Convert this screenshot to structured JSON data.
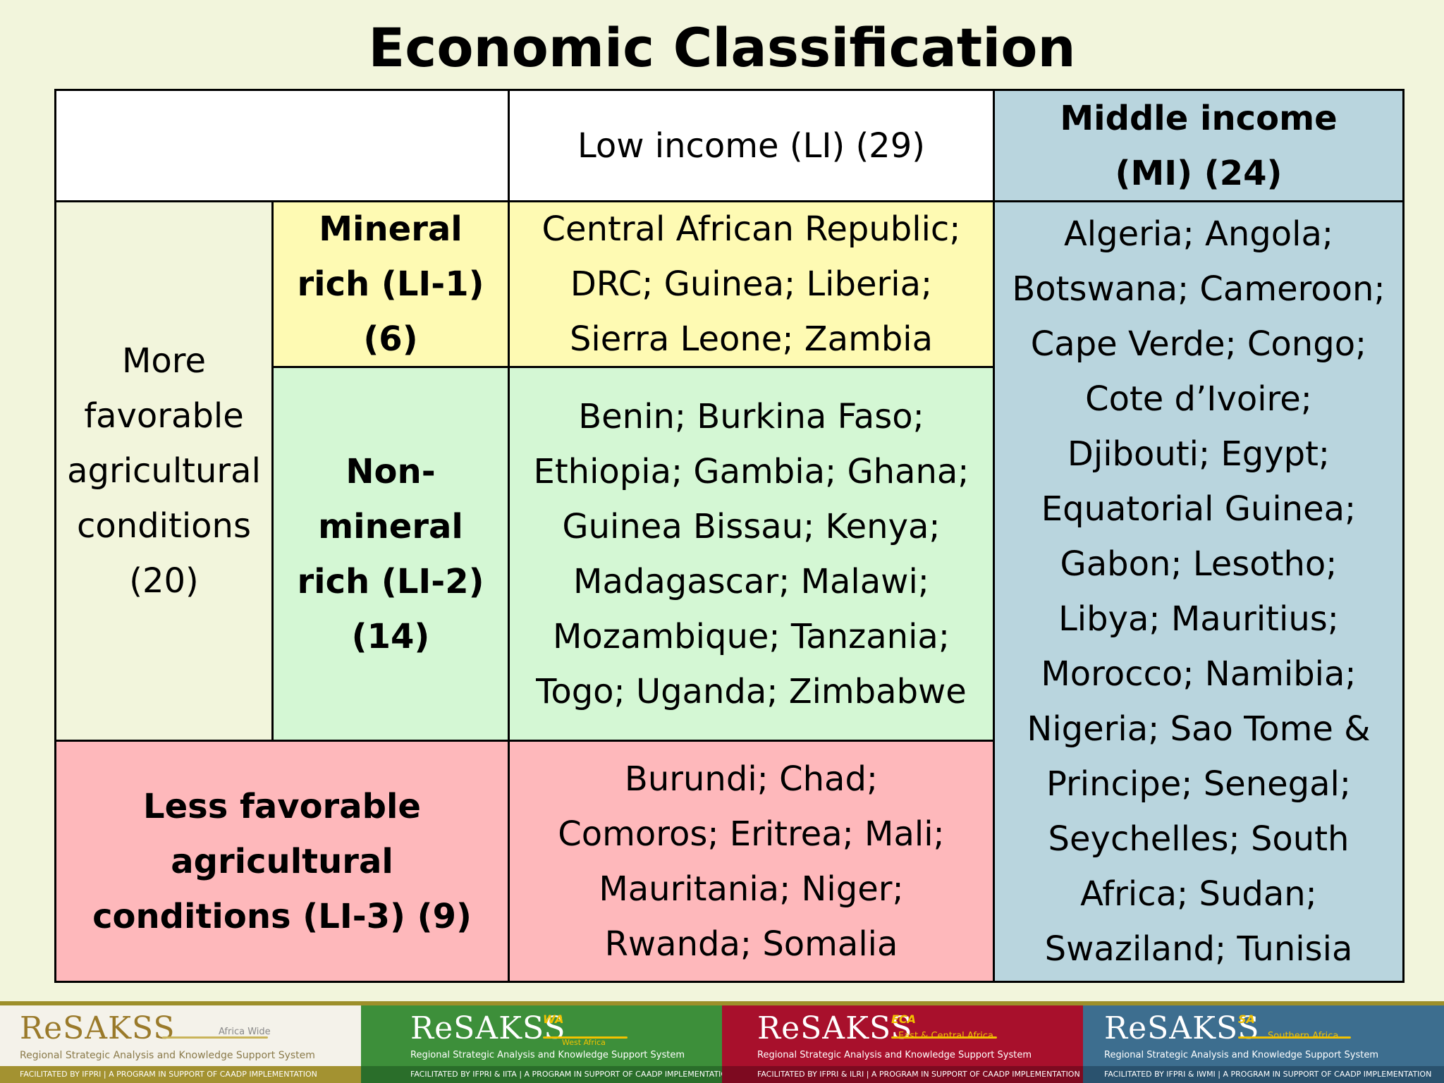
{
  "title": "Economic Classification",
  "table": {
    "header_low": "Low income (LI) (29)",
    "header_middle": "Middle income (MI) (24)",
    "more_favorable": "More favorable agricultural conditions (20)",
    "li1_label": "Mineral rich (LI-1) (6)",
    "li1_countries": "Central African Republic; DRC; Guinea; Liberia; Sierra Leone; Zambia",
    "li2_label": "Non-mineral rich (LI-2) (14)",
    "li2_countries": "Benin; Burkina Faso; Ethiopia; Gambia; Ghana; Guinea Bissau; Kenya; Madagascar; Malawi; Mozambique; Tanzania; Togo; Uganda; Zimbabwe",
    "li3_label": "Less favorable agricultural conditions (LI-3) (9)",
    "li3_countries": "Burundi; Chad; Comoros; Eritrea; Mali; Mauritania; Niger; Rwanda; Somalia",
    "mi_countries": "Algeria; Angola; Botswana; Cameroon; Cape Verde; Congo; Cote d’Ivoire; Djibouti; Egypt; Equatorial Guinea; Gabon; Lesotho; Libya; Mauritius; Morocco; Namibia; Nigeria; Sao Tome & Principe; Senegal; Seychelles; South Africa; Sudan; Swaziland; Tunisia"
  },
  "footer": [
    {
      "brand": "ReSAKSS",
      "sup": "",
      "region": "Africa Wide",
      "subtitle": "Regional Strategic Analysis and Knowledge Support System",
      "facilitated": "FACILITATED BY IFPRI | A PROGRAM IN SUPPORT OF CAADP IMPLEMENTATION"
    },
    {
      "brand": "ReSAKSS",
      "sup": "WA",
      "region": "West Africa",
      "subtitle": "Regional Strategic Analysis and Knowledge Support System",
      "facilitated": "FACILITATED BY IFPRI & IITA | A PROGRAM IN SUPPORT OF CAADP IMPLEMENTATION"
    },
    {
      "brand": "ReSAKSS",
      "sup": "ECA",
      "region": "East & Central Africa",
      "subtitle": "Regional Strategic Analysis and Knowledge Support System",
      "facilitated": "FACILITATED BY IFPRI & ILRI | A PROGRAM IN SUPPORT OF CAADP IMPLEMENTATION"
    },
    {
      "brand": "ReSAKSS",
      "sup": "SA",
      "region": "Southern Africa",
      "subtitle": "Regional Strategic Analysis and Knowledge Support System",
      "facilitated": "FACILITATED BY IFPRI & IWMI | A PROGRAM IN SUPPORT OF CAADP IMPLEMENTATION"
    }
  ]
}
